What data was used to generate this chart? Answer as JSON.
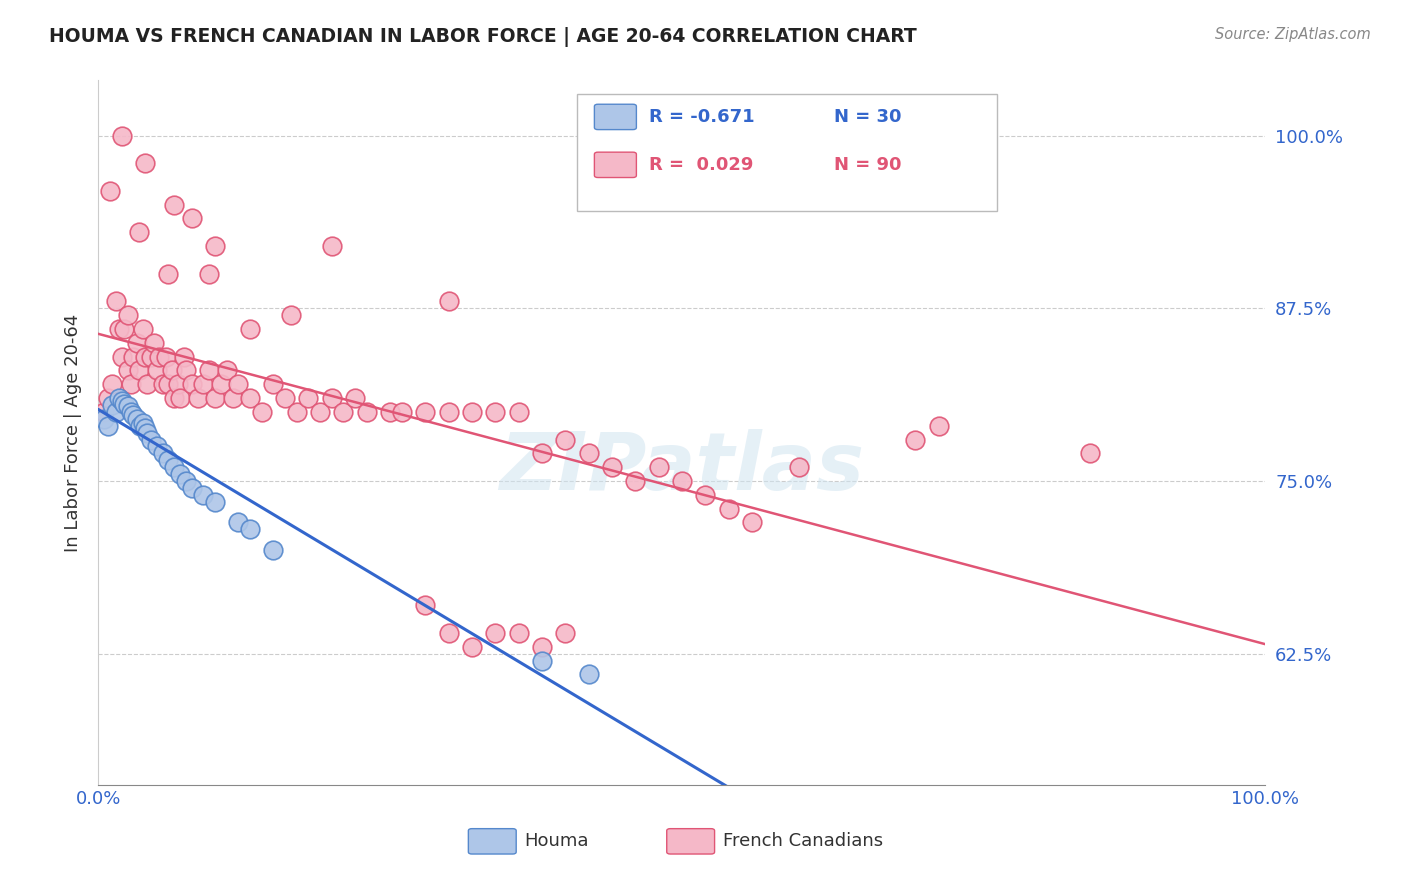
{
  "title": "HOUMA VS FRENCH CANADIAN IN LABOR FORCE | AGE 20-64 CORRELATION CHART",
  "source": "Source: ZipAtlas.com",
  "ylabel": "In Labor Force | Age 20-64",
  "xlim": [
    0.0,
    1.0
  ],
  "ylim": [
    0.53,
    1.04
  ],
  "yticks": [
    0.625,
    0.75,
    0.875,
    1.0
  ],
  "ytick_labels": [
    "62.5%",
    "75.0%",
    "87.5%",
    "100.0%"
  ],
  "xtick_labels": [
    "0.0%",
    "100.0%"
  ],
  "xtick_pos": [
    0.0,
    1.0
  ],
  "houma_color": "#aec6e8",
  "french_color": "#f5b8c8",
  "houma_edge_color": "#5588cc",
  "french_edge_color": "#e05575",
  "line_houma_color": "#3366cc",
  "line_french_color": "#e05575",
  "watermark": "ZIPatlas",
  "houma_x": [
    0.005,
    0.008,
    0.012,
    0.015,
    0.018,
    0.02,
    0.022,
    0.025,
    0.028,
    0.03,
    0.033,
    0.036,
    0.038,
    0.04,
    0.042,
    0.045,
    0.05,
    0.055,
    0.06,
    0.065,
    0.07,
    0.075,
    0.08,
    0.09,
    0.1,
    0.12,
    0.13,
    0.15,
    0.38,
    0.42
  ],
  "houma_y": [
    0.795,
    0.79,
    0.805,
    0.8,
    0.81,
    0.808,
    0.806,
    0.804,
    0.8,
    0.798,
    0.795,
    0.79,
    0.792,
    0.788,
    0.785,
    0.78,
    0.775,
    0.77,
    0.765,
    0.76,
    0.755,
    0.75,
    0.745,
    0.74,
    0.735,
    0.72,
    0.715,
    0.7,
    0.62,
    0.61
  ],
  "french_x": [
    0.005,
    0.008,
    0.01,
    0.012,
    0.015,
    0.018,
    0.02,
    0.022,
    0.025,
    0.028,
    0.03,
    0.033,
    0.035,
    0.038,
    0.04,
    0.042,
    0.045,
    0.048,
    0.05,
    0.052,
    0.055,
    0.058,
    0.06,
    0.063,
    0.065,
    0.068,
    0.07,
    0.073,
    0.075,
    0.08,
    0.085,
    0.09,
    0.095,
    0.1,
    0.105,
    0.11,
    0.115,
    0.12,
    0.13,
    0.14,
    0.15,
    0.16,
    0.17,
    0.18,
    0.19,
    0.2,
    0.21,
    0.22,
    0.23,
    0.25,
    0.26,
    0.28,
    0.3,
    0.32,
    0.34,
    0.36,
    0.38,
    0.4,
    0.42,
    0.44,
    0.46,
    0.48,
    0.5,
    0.52,
    0.54,
    0.56,
    0.28,
    0.3,
    0.32,
    0.34,
    0.36,
    0.38,
    0.4,
    0.6,
    0.7,
    0.72,
    0.85,
    0.02,
    0.04,
    0.06,
    0.08,
    0.1,
    0.2,
    0.3,
    0.025,
    0.035,
    0.065,
    0.095,
    0.13,
    0.165
  ],
  "french_y": [
    0.8,
    0.81,
    0.96,
    0.82,
    0.88,
    0.86,
    0.84,
    0.86,
    0.83,
    0.82,
    0.84,
    0.85,
    0.83,
    0.86,
    0.84,
    0.82,
    0.84,
    0.85,
    0.83,
    0.84,
    0.82,
    0.84,
    0.82,
    0.83,
    0.81,
    0.82,
    0.81,
    0.84,
    0.83,
    0.82,
    0.81,
    0.82,
    0.83,
    0.81,
    0.82,
    0.83,
    0.81,
    0.82,
    0.81,
    0.8,
    0.82,
    0.81,
    0.8,
    0.81,
    0.8,
    0.81,
    0.8,
    0.81,
    0.8,
    0.8,
    0.8,
    0.8,
    0.8,
    0.8,
    0.8,
    0.8,
    0.77,
    0.78,
    0.77,
    0.76,
    0.75,
    0.76,
    0.75,
    0.74,
    0.73,
    0.72,
    0.66,
    0.64,
    0.63,
    0.64,
    0.64,
    0.63,
    0.64,
    0.76,
    0.78,
    0.79,
    0.77,
    1.0,
    0.98,
    0.9,
    0.94,
    0.92,
    0.92,
    0.88,
    0.87,
    0.93,
    0.95,
    0.9,
    0.86,
    0.87
  ]
}
